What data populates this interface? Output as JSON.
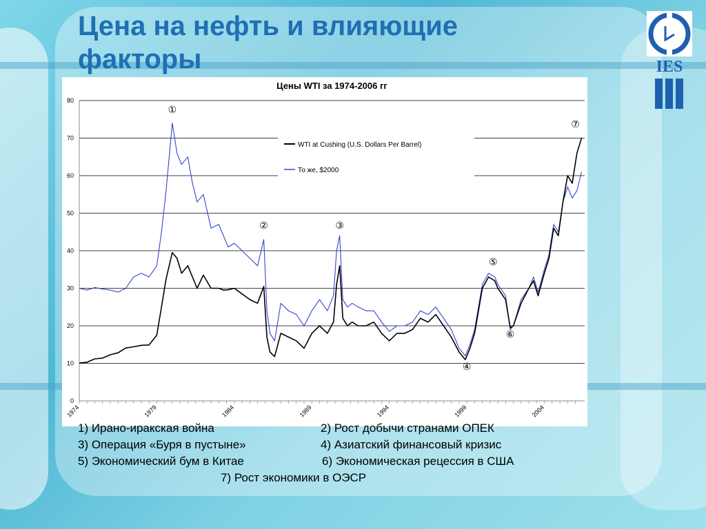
{
  "slide": {
    "title": "Цена на нефть и влияющие факторы",
    "logo_text": "IES",
    "accent_color": "#1f6fb3"
  },
  "chart_data": {
    "type": "line",
    "title": "Цены WTI за 1974-2006 гг",
    "xlabel": "",
    "ylabel": "",
    "xlim": [
      1974,
      2006.6
    ],
    "ylim": [
      0,
      80
    ],
    "yticks": [
      "0",
      "10",
      "20",
      "30",
      "40",
      "50",
      "60",
      "70",
      "80"
    ],
    "xticks": [
      "1974",
      "1979",
      "1984",
      "1989",
      "1994",
      "1999",
      "2004"
    ],
    "grid": "horizontal",
    "legend_position": "top-right",
    "series": [
      {
        "name": "WTI at Cushing (U.S. Dollars Per Barrel)",
        "color": "#000000",
        "x": [
          1974,
          1974.5,
          1975,
          1975.5,
          1976,
          1976.5,
          1977,
          1977.5,
          1978,
          1978.5,
          1979,
          1979.3,
          1979.6,
          1980,
          1980.3,
          1980.6,
          1981,
          1981.3,
          1981.6,
          1982,
          1982.5,
          1983,
          1983.3,
          1983.6,
          1984,
          1984.5,
          1985,
          1985.5,
          1985.9,
          1986.1,
          1986.3,
          1986.6,
          1987,
          1987.5,
          1988,
          1988.5,
          1989,
          1989.5,
          1990,
          1990.4,
          1990.6,
          1990.8,
          1991,
          1991.3,
          1991.6,
          1992,
          1992.5,
          1993,
          1993.5,
          1994,
          1994.5,
          1995,
          1995.5,
          1996,
          1996.5,
          1997,
          1997.5,
          1998,
          1998.5,
          1998.9,
          1999.2,
          1999.5,
          2000,
          2000.4,
          2000.8,
          2001,
          2001.5,
          2001.8,
          2002,
          2002.5,
          2003,
          2003.3,
          2003.6,
          2004,
          2004.3,
          2004.6,
          2004.9,
          2005.2,
          2005.5,
          2005.8,
          2006.1,
          2006.4
        ],
        "values": [
          10.1,
          10.3,
          11.2,
          11.4,
          12.3,
          12.8,
          14.1,
          14.4,
          14.8,
          14.9,
          17.5,
          25,
          32.5,
          39.5,
          38,
          34,
          36,
          33,
          30,
          33.5,
          30,
          30,
          29.5,
          29.6,
          30,
          28.5,
          27,
          26,
          30.5,
          17,
          13,
          11.8,
          18,
          17,
          16,
          14,
          18,
          20,
          18,
          21,
          31,
          36,
          22,
          20,
          21,
          20,
          20,
          21,
          18,
          16,
          18,
          18,
          19,
          22,
          21,
          23,
          20,
          17,
          13,
          11,
          14,
          18,
          30,
          33,
          32,
          30,
          27,
          19.5,
          20,
          26,
          30,
          32,
          28,
          34,
          38,
          46,
          44,
          53,
          60,
          58,
          66,
          70
        ]
      },
      {
        "name": "То же, $2000",
        "color": "#3344cc",
        "x": [
          1974,
          1974.5,
          1975,
          1975.5,
          1976,
          1976.5,
          1977,
          1977.5,
          1978,
          1978.5,
          1979,
          1979.3,
          1979.6,
          1980,
          1980.3,
          1980.6,
          1981,
          1981.3,
          1981.6,
          1982,
          1982.5,
          1983,
          1983.3,
          1983.6,
          1984,
          1984.5,
          1985,
          1985.5,
          1985.9,
          1986.1,
          1986.3,
          1986.6,
          1987,
          1987.5,
          1988,
          1988.5,
          1989,
          1989.5,
          1990,
          1990.4,
          1990.6,
          1990.8,
          1991,
          1991.3,
          1991.6,
          1992,
          1992.5,
          1993,
          1993.5,
          1994,
          1994.5,
          1995,
          1995.5,
          1996,
          1996.5,
          1997,
          1997.5,
          1998,
          1998.5,
          1998.9,
          1999.2,
          1999.5,
          2000,
          2000.4,
          2000.8,
          2001,
          2001.5,
          2001.8,
          2002,
          2002.5,
          2003,
          2003.3,
          2003.6,
          2004,
          2004.3,
          2004.6,
          2004.9,
          2005.2,
          2005.5,
          2005.8,
          2006.1,
          2006.4
        ],
        "values": [
          30,
          29.5,
          30.2,
          29.8,
          29.5,
          29,
          30,
          33,
          34,
          33,
          36,
          45,
          56,
          74,
          66,
          63,
          65,
          58,
          53,
          55,
          46,
          47,
          44,
          41,
          42,
          40,
          38,
          36,
          43,
          24,
          18,
          16,
          26,
          24,
          23,
          20,
          24,
          27,
          24,
          28,
          40,
          44,
          27,
          25,
          26,
          25,
          24,
          24,
          21,
          18.5,
          20,
          20,
          21,
          24,
          23,
          25,
          22,
          19,
          14,
          12,
          15,
          19,
          31,
          34,
          33,
          31,
          28,
          19,
          20,
          27,
          30,
          33,
          29,
          35,
          39,
          47,
          45,
          53,
          57,
          54,
          56,
          61
        ]
      }
    ],
    "annotations": [
      {
        "label": "①",
        "x": 1980.0
      },
      {
        "label": "②",
        "x": 1985.9
      },
      {
        "label": "③",
        "x": 1990.8
      },
      {
        "label": "④",
        "x": 1999.0
      },
      {
        "label": "⑤",
        "x": 2000.7
      },
      {
        "label": "⑥",
        "x": 2001.8
      },
      {
        "label": "⑦",
        "x": 2006.0
      }
    ]
  },
  "legend_items": [
    "1) Ирано-иракская война",
    "2) Рост добычи странами ОПЕК",
    "3) Операция «Буря в пустыне»",
    "4) Азиатский финансовый кризис",
    "5) Экономический бум в Китае",
    "6) Экономическая рецессия в США",
    "7) Рост экономики в ОЭСР"
  ]
}
